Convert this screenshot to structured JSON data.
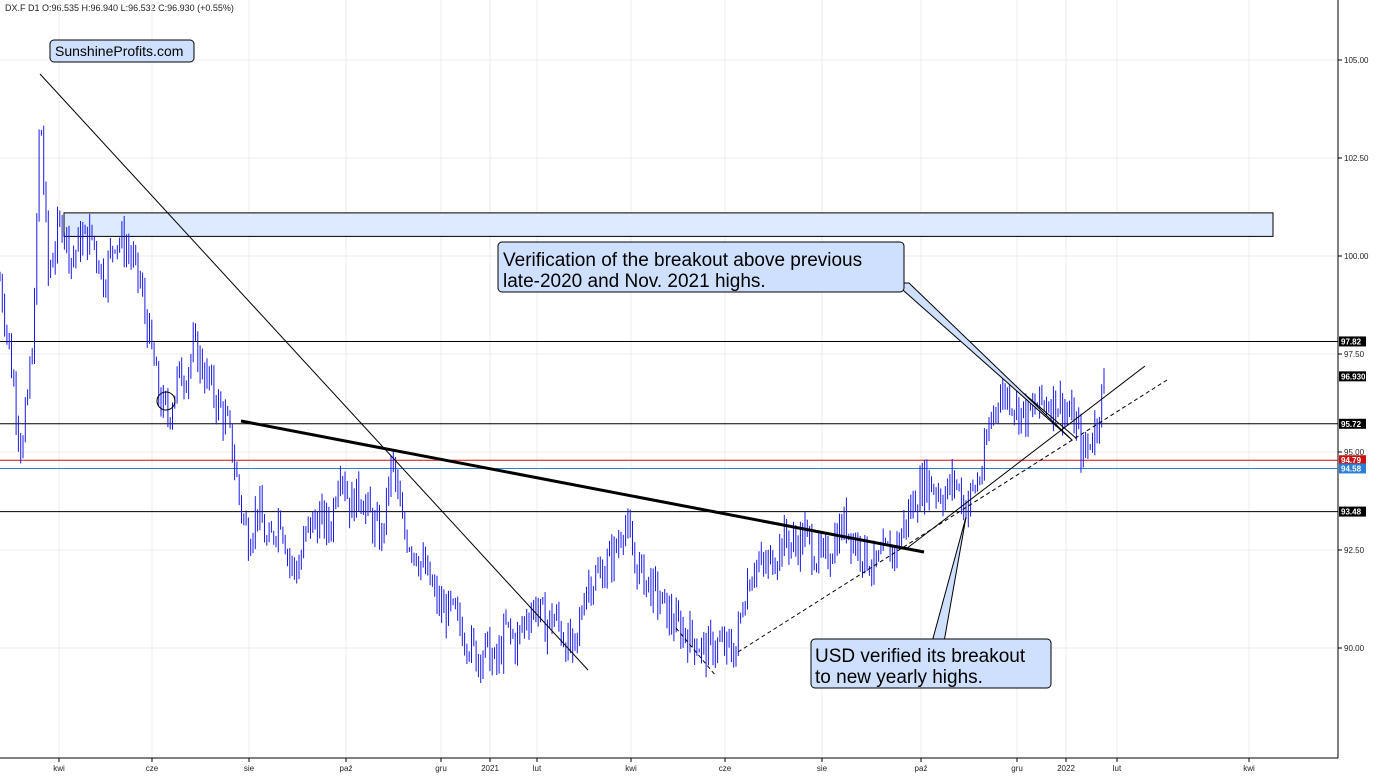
{
  "chart_data": {
    "type": "candlestick",
    "header": "DX.F  D1  O:96.535  H:96.940  L:96.532  C:96.930  (+0.55%)",
    "watermark": "SunshineProfits.com",
    "y_axis": {
      "range": [
        88.3,
        106.0
      ],
      "ticks": [
        "105.00",
        "102.50",
        "100.00",
        "97.50",
        "95.00",
        "92.50",
        "90.00"
      ]
    },
    "x_axis": {
      "ticks": [
        "kwi",
        "cze",
        "sie",
        "paź",
        "gru",
        "2021",
        "lut",
        "kwi",
        "cze",
        "sie",
        "paź",
        "gru",
        "2022",
        "lut",
        "kwi"
      ]
    },
    "level_labels": [
      {
        "value": 97.82,
        "label": "97.82",
        "color": "#000000"
      },
      {
        "value": 96.93,
        "label": "96.930",
        "color": "#000000"
      },
      {
        "value": 95.72,
        "label": "95.72",
        "color": "#000000"
      },
      {
        "value": 94.79,
        "label": "94.79",
        "color": "#cc1111"
      },
      {
        "value": 94.58,
        "label": "94.58",
        "color": "#2a7fd4"
      },
      {
        "value": 93.48,
        "label": "93.48",
        "color": "#000000"
      }
    ],
    "resistance_zone": [
      100.5,
      101.1
    ],
    "price_path": [
      [
        0,
        99.4
      ],
      [
        10,
        97.5
      ],
      [
        22,
        94.9
      ],
      [
        34,
        98.2
      ],
      [
        40,
        103.9
      ],
      [
        48,
        99.5
      ],
      [
        55,
        100.3
      ],
      [
        62,
        100.9
      ],
      [
        72,
        99.9
      ],
      [
        80,
        100.4
      ],
      [
        92,
        100.5
      ],
      [
        104,
        99.4
      ],
      [
        115,
        100.5
      ],
      [
        128,
        100.2
      ],
      [
        140,
        99.3
      ],
      [
        150,
        97.8
      ],
      [
        160,
        96.3
      ],
      [
        168,
        95.9
      ],
      [
        178,
        96.9
      ],
      [
        186,
        97.0
      ],
      [
        194,
        97.7
      ],
      [
        205,
        97.0
      ],
      [
        215,
        96.4
      ],
      [
        227,
        95.7
      ],
      [
        233,
        95.0
      ],
      [
        240,
        93.7
      ],
      [
        248,
        92.8
      ],
      [
        258,
        93.6
      ],
      [
        268,
        92.5
      ],
      [
        280,
        93.5
      ],
      [
        290,
        92.1
      ],
      [
        298,
        92.0
      ],
      [
        308,
        93.1
      ],
      [
        320,
        93.3
      ],
      [
        330,
        93.0
      ],
      [
        340,
        94.8
      ],
      [
        350,
        93.6
      ],
      [
        360,
        94.0
      ],
      [
        372,
        93.2
      ],
      [
        382,
        92.8
      ],
      [
        392,
        94.8
      ],
      [
        403,
        93.0
      ],
      [
        415,
        92.5
      ],
      [
        428,
        91.8
      ],
      [
        440,
        91.0
      ],
      [
        452,
        90.9
      ],
      [
        464,
        90.4
      ],
      [
        476,
        89.8
      ],
      [
        487,
        90.0
      ],
      [
        496,
        89.5
      ],
      [
        506,
        90.5
      ],
      [
        516,
        90.1
      ],
      [
        526,
        90.8
      ],
      [
        536,
        91.1
      ],
      [
        545,
        90.6
      ],
      [
        555,
        90.8
      ],
      [
        565,
        90.2
      ],
      [
        575,
        89.8
      ],
      [
        585,
        91.6
      ],
      [
        596,
        91.8
      ],
      [
        606,
        92.1
      ],
      [
        616,
        92.5
      ],
      [
        624,
        93.3
      ],
      [
        634,
        92.2
      ],
      [
        644,
        91.8
      ],
      [
        655,
        91.4
      ],
      [
        665,
        91.0
      ],
      [
        675,
        90.6
      ],
      [
        685,
        90.4
      ],
      [
        695,
        90.2
      ],
      [
        705,
        89.9
      ],
      [
        715,
        90.1
      ],
      [
        725,
        90.0
      ],
      [
        735,
        89.9
      ],
      [
        745,
        91.5
      ],
      [
        755,
        92.2
      ],
      [
        765,
        92.0
      ],
      [
        775,
        92.4
      ],
      [
        785,
        92.8
      ],
      [
        795,
        92.6
      ],
      [
        805,
        92.9
      ],
      [
        815,
        92.4
      ],
      [
        825,
        92.2
      ],
      [
        835,
        92.8
      ],
      [
        845,
        93.2
      ],
      [
        855,
        92.7
      ],
      [
        865,
        92.4
      ],
      [
        875,
        92.0
      ],
      [
        885,
        92.4
      ],
      [
        895,
        92.5
      ],
      [
        905,
        93.2
      ],
      [
        915,
        93.8
      ],
      [
        925,
        94.3
      ],
      [
        935,
        94.1
      ],
      [
        945,
        93.9
      ],
      [
        955,
        94.3
      ],
      [
        965,
        93.6
      ],
      [
        975,
        94.1
      ],
      [
        983,
        94.6
      ],
      [
        990,
        95.8
      ],
      [
        998,
        96.4
      ],
      [
        1008,
        96.5
      ],
      [
        1018,
        96.1
      ],
      [
        1028,
        95.9
      ],
      [
        1038,
        96.2
      ],
      [
        1048,
        96.3
      ],
      [
        1058,
        96.3
      ],
      [
        1068,
        96.0
      ],
      [
        1076,
        95.7
      ],
      [
        1083,
        94.9
      ],
      [
        1090,
        95.3
      ],
      [
        1097,
        95.8
      ],
      [
        1105,
        96.93
      ]
    ],
    "annotations": [
      {
        "lines": [
          "Verification of the breakout above previous",
          "late-2020 and Nov. 2021 highs."
        ]
      },
      {
        "lines": [
          "USD verified its breakout",
          "to new yearly highs."
        ]
      }
    ]
  }
}
